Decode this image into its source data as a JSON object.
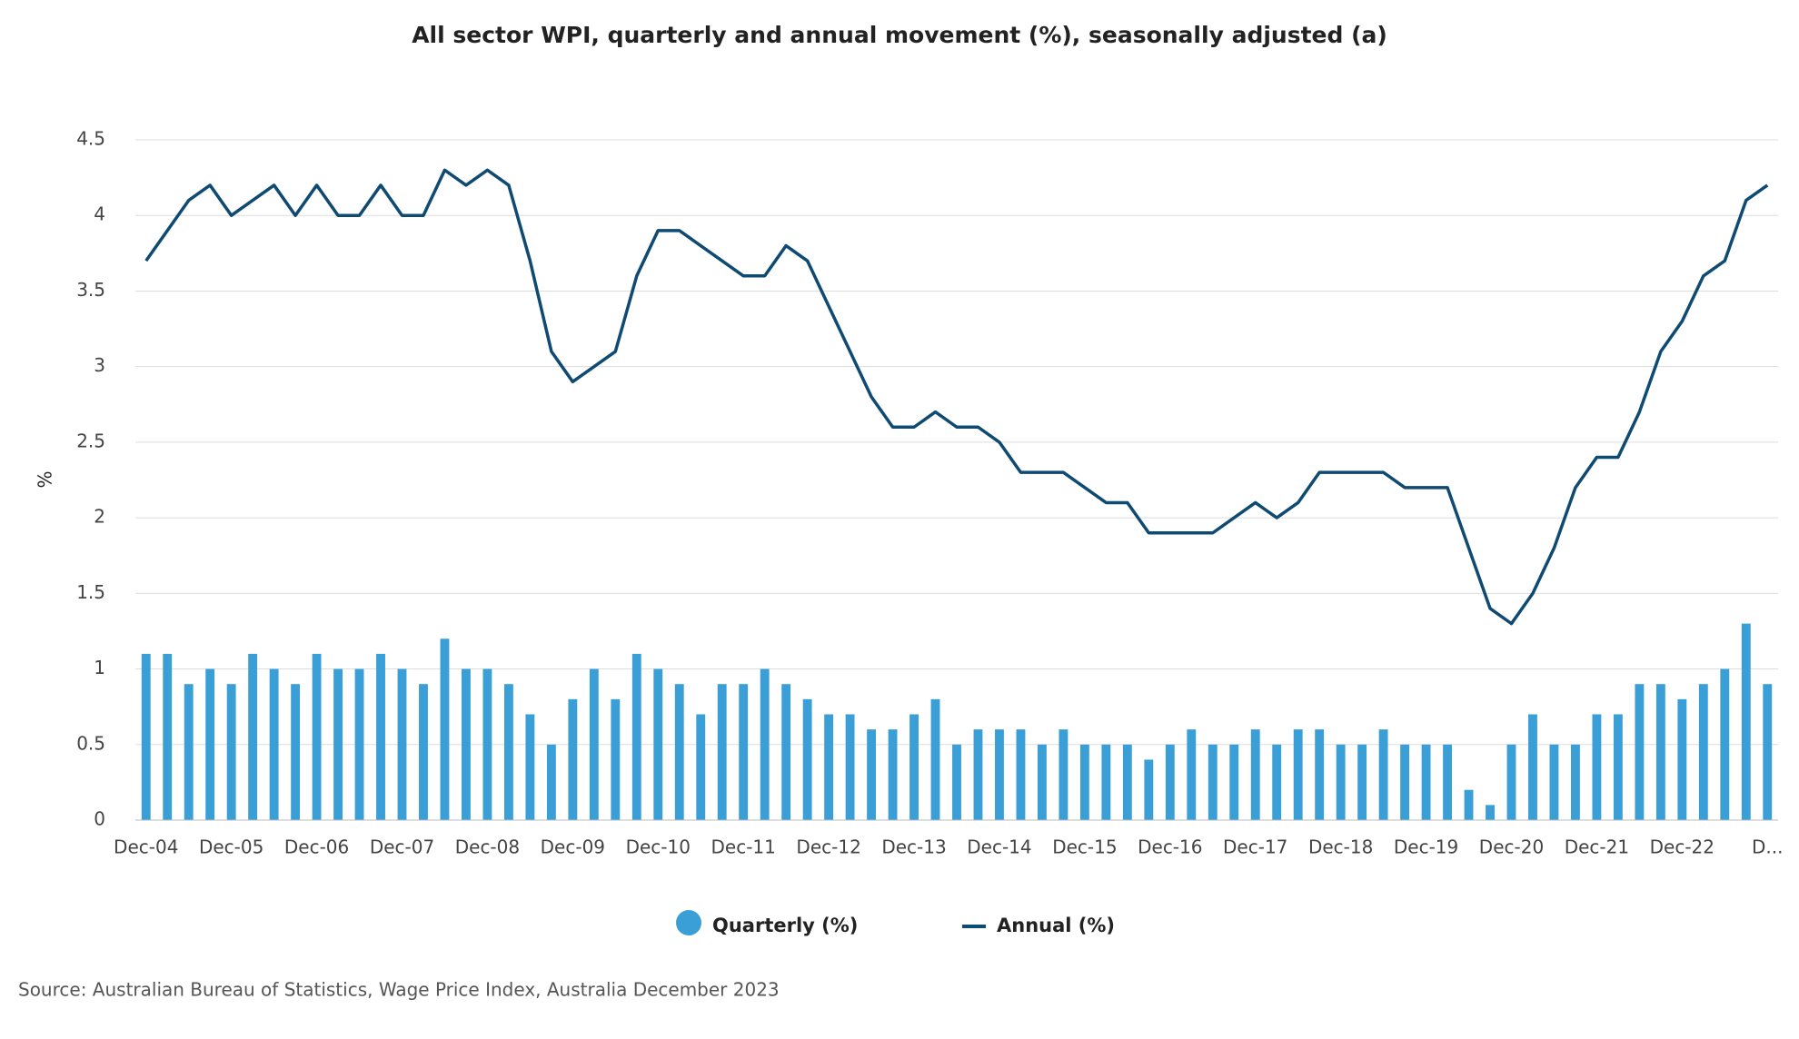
{
  "chart_data": {
    "type": "bar+line",
    "title": "All sector WPI, quarterly and annual movement (%), seasonally adjusted (a)",
    "y_label": "%",
    "source": "Source: Australian Bureau of Statistics, Wage Price Index, Australia December 2023",
    "categories": [
      "Dec-04",
      null,
      null,
      null,
      "Dec-05",
      null,
      null,
      null,
      "Dec-06",
      null,
      null,
      null,
      "Dec-07",
      null,
      null,
      null,
      "Dec-08",
      null,
      null,
      null,
      "Dec-09",
      null,
      null,
      null,
      "Dec-10",
      null,
      null,
      null,
      "Dec-11",
      null,
      null,
      null,
      "Dec-12",
      null,
      null,
      null,
      "Dec-13",
      null,
      null,
      null,
      "Dec-14",
      null,
      null,
      null,
      "Dec-15",
      null,
      null,
      null,
      "Dec-16",
      null,
      null,
      null,
      "Dec-17",
      null,
      null,
      null,
      "Dec-18",
      null,
      null,
      null,
      "Dec-19",
      null,
      null,
      null,
      "Dec-20",
      null,
      null,
      null,
      "Dec-21",
      null,
      null,
      null,
      "Dec-22",
      null,
      null,
      null,
      "D..."
    ],
    "series": [
      {
        "name": "Quarterly (%)",
        "type": "bar",
        "color": "#3a9fd6",
        "values": [
          1.1,
          1.1,
          0.9,
          1.0,
          0.9,
          1.1,
          1.0,
          0.9,
          1.1,
          1.0,
          1.0,
          1.1,
          1.0,
          0.9,
          1.2,
          1.0,
          1.0,
          0.9,
          0.7,
          0.5,
          0.8,
          1.0,
          0.8,
          1.1,
          1.0,
          0.9,
          0.7,
          0.9,
          0.9,
          1.0,
          0.9,
          0.8,
          0.7,
          0.7,
          0.6,
          0.6,
          0.7,
          0.8,
          0.5,
          0.6,
          0.6,
          0.6,
          0.5,
          0.6,
          0.5,
          0.5,
          0.5,
          0.4,
          0.5,
          0.6,
          0.5,
          0.5,
          0.6,
          0.5,
          0.6,
          0.6,
          0.5,
          0.5,
          0.6,
          0.5,
          0.5,
          0.5,
          0.2,
          0.1,
          0.5,
          0.7,
          0.5,
          0.5,
          0.7,
          0.7,
          0.9,
          0.9,
          0.8,
          0.9,
          1.0,
          1.3,
          0.9
        ]
      },
      {
        "name": "Annual (%)",
        "type": "line",
        "color": "#0f4a72",
        "values": [
          3.7,
          3.9,
          4.1,
          4.2,
          4.0,
          4.1,
          4.2,
          4.0,
          4.2,
          4.0,
          4.0,
          4.2,
          4.0,
          4.0,
          4.3,
          4.2,
          4.3,
          4.2,
          3.7,
          3.1,
          2.9,
          3.0,
          3.1,
          3.6,
          3.9,
          3.9,
          3.8,
          3.7,
          3.6,
          3.6,
          3.8,
          3.7,
          3.4,
          3.1,
          2.8,
          2.6,
          2.6,
          2.7,
          2.6,
          2.6,
          2.5,
          2.3,
          2.3,
          2.3,
          2.2,
          2.1,
          2.1,
          1.9,
          1.9,
          1.9,
          1.9,
          2.0,
          2.1,
          2.0,
          2.1,
          2.3,
          2.3,
          2.3,
          2.3,
          2.2,
          2.2,
          2.2,
          1.8,
          1.4,
          1.3,
          1.5,
          1.8,
          2.2,
          2.4,
          2.4,
          2.7,
          3.1,
          3.3,
          3.6,
          3.7,
          4.1,
          4.2
        ]
      }
    ],
    "ylim": [
      0,
      4.5
    ],
    "yticks": [
      0,
      0.5,
      1,
      1.5,
      2,
      2.5,
      3,
      3.5,
      4,
      4.5
    ],
    "grid": true,
    "legend": "bottom"
  }
}
